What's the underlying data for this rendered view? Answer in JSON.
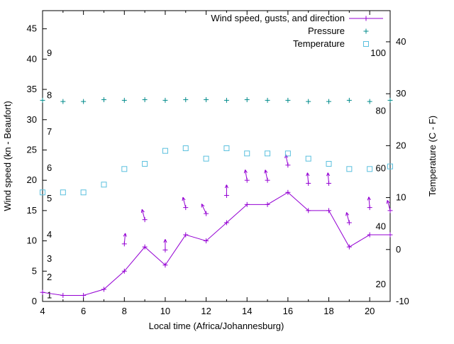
{
  "chart_data": {
    "type": "line",
    "title": "",
    "xlabel": "Local time (Africa/Johannesburg)",
    "ylabel_left": "Wind speed (kn - Beaufort)",
    "ylabel_right": "Temperature (C - F)",
    "xlim": [
      4,
      21
    ],
    "ylim_left": [
      0,
      48
    ],
    "ylim_right": [
      -10,
      46
    ],
    "x_ticks": [
      4,
      6,
      8,
      10,
      12,
      14,
      16,
      18,
      20
    ],
    "x_minor_ticks": [
      5,
      7,
      9,
      11,
      13,
      15,
      17,
      19,
      21
    ],
    "y_ticks_left": [
      0,
      5,
      10,
      15,
      20,
      25,
      30,
      35,
      40,
      45
    ],
    "y_ticks_right": [
      -10,
      0,
      10,
      20,
      30,
      40
    ],
    "beaufort_labels": [
      {
        "label": "1",
        "kn": 1
      },
      {
        "label": "2",
        "kn": 4
      },
      {
        "label": "3",
        "kn": 7
      },
      {
        "label": "4",
        "kn": 11
      },
      {
        "label": "5",
        "kn": 17
      },
      {
        "label": "6",
        "kn": 22
      },
      {
        "label": "7",
        "kn": 28
      },
      {
        "label": "8",
        "kn": 34
      },
      {
        "label": "9",
        "kn": 41
      }
    ],
    "fahrenheit_labels": [
      {
        "label": "20",
        "c": -6.7
      },
      {
        "label": "40",
        "c": 4.4
      },
      {
        "label": "60",
        "c": 15.6
      },
      {
        "label": "80",
        "c": 26.7
      },
      {
        "label": "100",
        "c": 37.8
      }
    ],
    "x": [
      4,
      5,
      6,
      7,
      8,
      9,
      10,
      11,
      12,
      13,
      14,
      15,
      16,
      17,
      18,
      19,
      20,
      21
    ],
    "series": [
      {
        "name": "Wind speed, gusts, and direction",
        "color": "#9400d3",
        "marker": "plus",
        "line": true,
        "axis": "left",
        "values": [
          1.5,
          1,
          1,
          2,
          5,
          9,
          6,
          11,
          10,
          13,
          16,
          16,
          18,
          15,
          15,
          9,
          11,
          11
        ]
      },
      {
        "name": "Pressure",
        "color": "#008b8b",
        "marker": "plus",
        "line": false,
        "axis": "left",
        "values": [
          33.2,
          33,
          33,
          33.3,
          33.2,
          33.3,
          33.2,
          33.3,
          33.3,
          33.2,
          33.3,
          33.2,
          33.2,
          33,
          33,
          33.2,
          33,
          33.2
        ]
      },
      {
        "name": "Temperature",
        "color": "#5bc0de",
        "marker": "square-open",
        "line": false,
        "axis": "right",
        "values": [
          11,
          11,
          11,
          12.5,
          15.5,
          16.5,
          19,
          19.5,
          17.5,
          19.5,
          18.5,
          18.5,
          18.5,
          17.5,
          16.5,
          15.5,
          15.5,
          16
        ]
      }
    ],
    "gusts": {
      "color": "#9400d3",
      "values": [
        null,
        null,
        null,
        null,
        9.5,
        13.5,
        8.5,
        15.5,
        14.5,
        17.5,
        20,
        20,
        22.5,
        19.5,
        19.5,
        13,
        15.5,
        15
      ],
      "direction_deg": [
        null,
        null,
        null,
        null,
        5,
        -15,
        0,
        -15,
        -25,
        0,
        -10,
        -12,
        -12,
        -5,
        -5,
        -15,
        -5,
        -15
      ]
    },
    "legend_position": "top-right",
    "grid": false
  },
  "colors": {
    "axis": "#000000",
    "background": "#ffffff"
  }
}
